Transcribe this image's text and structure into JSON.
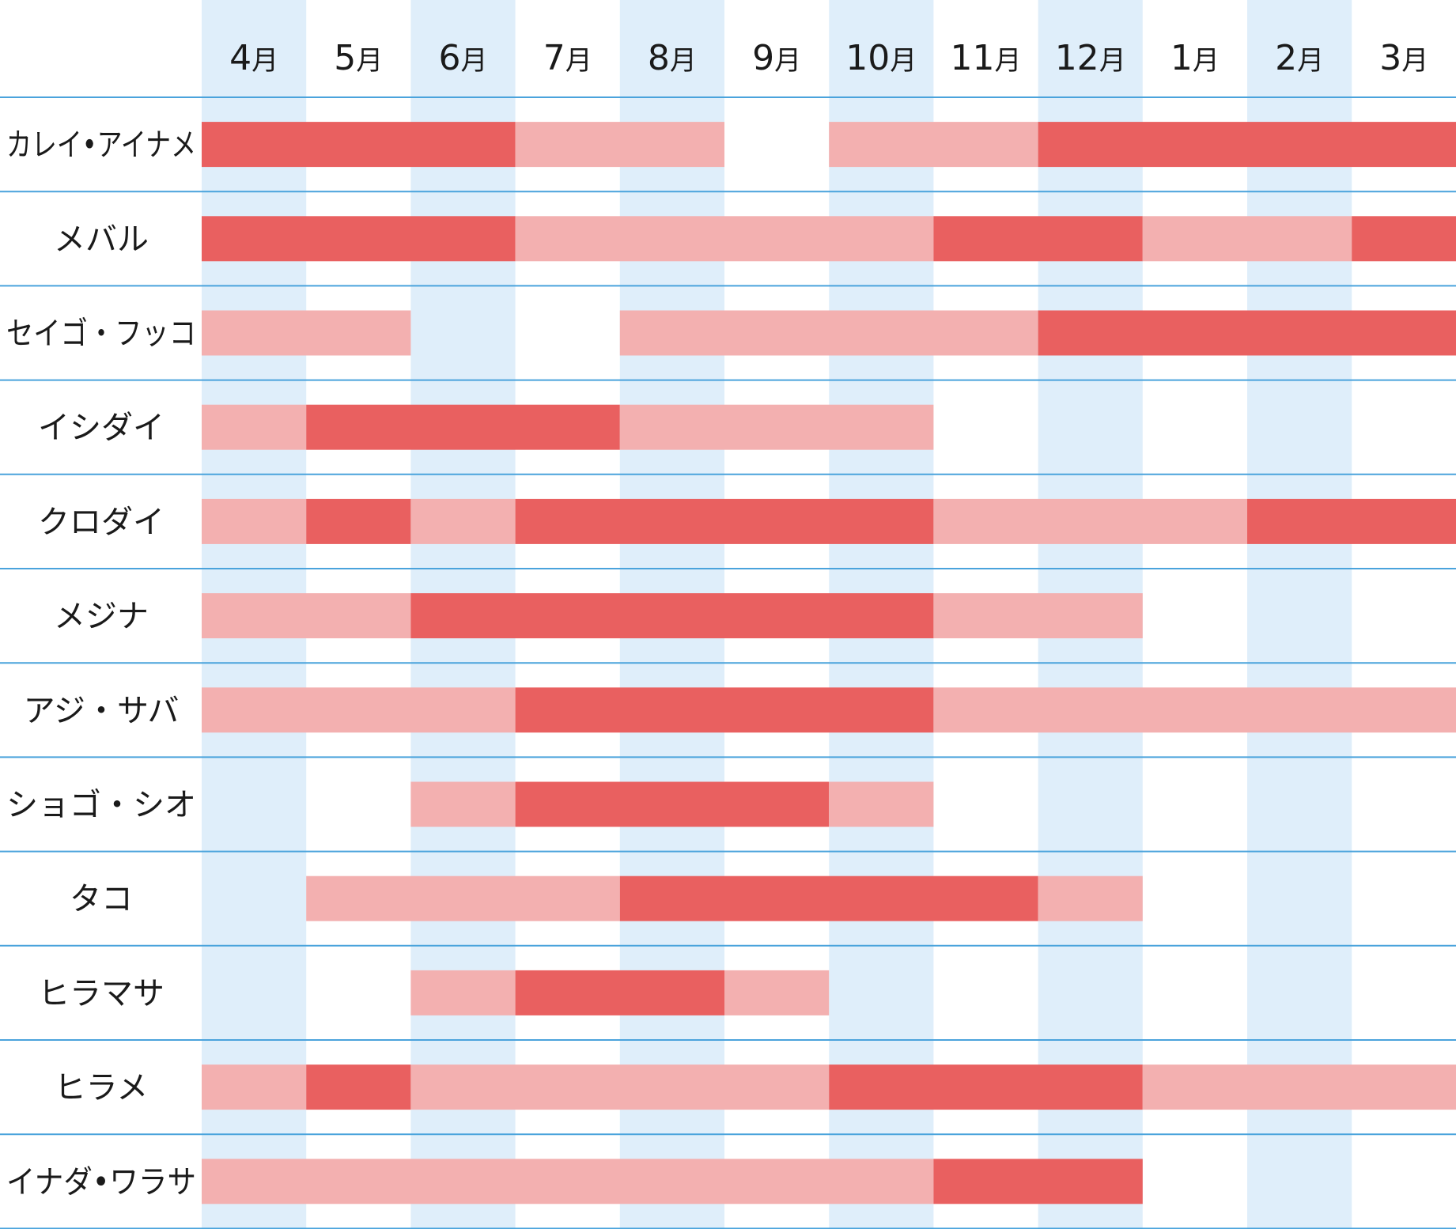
{
  "chart_data": {
    "type": "timeline",
    "title": "",
    "months": [
      {
        "num": "4",
        "unit": "月"
      },
      {
        "num": "5",
        "unit": "月"
      },
      {
        "num": "6",
        "unit": "月"
      },
      {
        "num": "7",
        "unit": "月"
      },
      {
        "num": "8",
        "unit": "月"
      },
      {
        "num": "9",
        "unit": "月"
      },
      {
        "num": "10",
        "unit": "月"
      },
      {
        "num": "11",
        "unit": "月"
      },
      {
        "num": "12",
        "unit": "月"
      },
      {
        "num": "1",
        "unit": "月"
      },
      {
        "num": "2",
        "unit": "月"
      },
      {
        "num": "3",
        "unit": "月"
      }
    ],
    "levels": {
      "peak": {
        "color": "#e96060"
      },
      "season": {
        "color": "#f3b0b0"
      }
    },
    "colors": {
      "column_stripe": "#dfeefa",
      "row_line": "#4aa3dc",
      "background": "#ffffff"
    },
    "rows": [
      {
        "name": "カレイ•アイナメ",
        "segments": [
          {
            "start": 0,
            "end": 3,
            "level": "peak"
          },
          {
            "start": 3,
            "end": 5,
            "level": "season"
          },
          {
            "start": 6,
            "end": 8,
            "level": "season"
          },
          {
            "start": 8,
            "end": 12,
            "level": "peak"
          }
        ]
      },
      {
        "name": "メバル",
        "segments": [
          {
            "start": 0,
            "end": 3,
            "level": "peak"
          },
          {
            "start": 3,
            "end": 7,
            "level": "season"
          },
          {
            "start": 7,
            "end": 9,
            "level": "peak"
          },
          {
            "start": 9,
            "end": 11,
            "level": "season"
          },
          {
            "start": 11,
            "end": 12,
            "level": "peak"
          }
        ]
      },
      {
        "name": "セイゴ・フッコ",
        "segments": [
          {
            "start": 0,
            "end": 2,
            "level": "season"
          },
          {
            "start": 4,
            "end": 8,
            "level": "season"
          },
          {
            "start": 8,
            "end": 12,
            "level": "peak"
          }
        ]
      },
      {
        "name": "イシダイ",
        "segments": [
          {
            "start": 0,
            "end": 1,
            "level": "season"
          },
          {
            "start": 1,
            "end": 4,
            "level": "peak"
          },
          {
            "start": 4,
            "end": 7,
            "level": "season"
          }
        ]
      },
      {
        "name": "クロダイ",
        "segments": [
          {
            "start": 0,
            "end": 1,
            "level": "season"
          },
          {
            "start": 1,
            "end": 2,
            "level": "peak"
          },
          {
            "start": 2,
            "end": 3,
            "level": "season"
          },
          {
            "start": 3,
            "end": 7,
            "level": "peak"
          },
          {
            "start": 7,
            "end": 10,
            "level": "season"
          },
          {
            "start": 10,
            "end": 12,
            "level": "peak"
          }
        ]
      },
      {
        "name": "メジナ",
        "segments": [
          {
            "start": 0,
            "end": 2,
            "level": "season"
          },
          {
            "start": 2,
            "end": 7,
            "level": "peak"
          },
          {
            "start": 7,
            "end": 9,
            "level": "season"
          }
        ]
      },
      {
        "name": "アジ・サバ",
        "segments": [
          {
            "start": 0,
            "end": 3,
            "level": "season"
          },
          {
            "start": 3,
            "end": 7,
            "level": "peak"
          },
          {
            "start": 7,
            "end": 12,
            "level": "season"
          }
        ]
      },
      {
        "name": "ショゴ・シオ",
        "segments": [
          {
            "start": 2,
            "end": 3,
            "level": "season"
          },
          {
            "start": 3,
            "end": 6,
            "level": "peak"
          },
          {
            "start": 6,
            "end": 7,
            "level": "season"
          }
        ]
      },
      {
        "name": "タコ",
        "segments": [
          {
            "start": 1,
            "end": 4,
            "level": "season"
          },
          {
            "start": 4,
            "end": 8,
            "level": "peak"
          },
          {
            "start": 8,
            "end": 9,
            "level": "season"
          }
        ]
      },
      {
        "name": "ヒラマサ",
        "segments": [
          {
            "start": 2,
            "end": 3,
            "level": "season"
          },
          {
            "start": 3,
            "end": 5,
            "level": "peak"
          },
          {
            "start": 5,
            "end": 6,
            "level": "season"
          }
        ]
      },
      {
        "name": "ヒラメ",
        "segments": [
          {
            "start": 0,
            "end": 1,
            "level": "season"
          },
          {
            "start": 1,
            "end": 2,
            "level": "peak"
          },
          {
            "start": 2,
            "end": 6,
            "level": "season"
          },
          {
            "start": 6,
            "end": 9,
            "level": "peak"
          },
          {
            "start": 9,
            "end": 12,
            "level": "season"
          }
        ]
      },
      {
        "name": "イナダ•ワラサ",
        "segments": [
          {
            "start": 0,
            "end": 7,
            "level": "season"
          },
          {
            "start": 7,
            "end": 9,
            "level": "peak"
          }
        ]
      }
    ]
  }
}
